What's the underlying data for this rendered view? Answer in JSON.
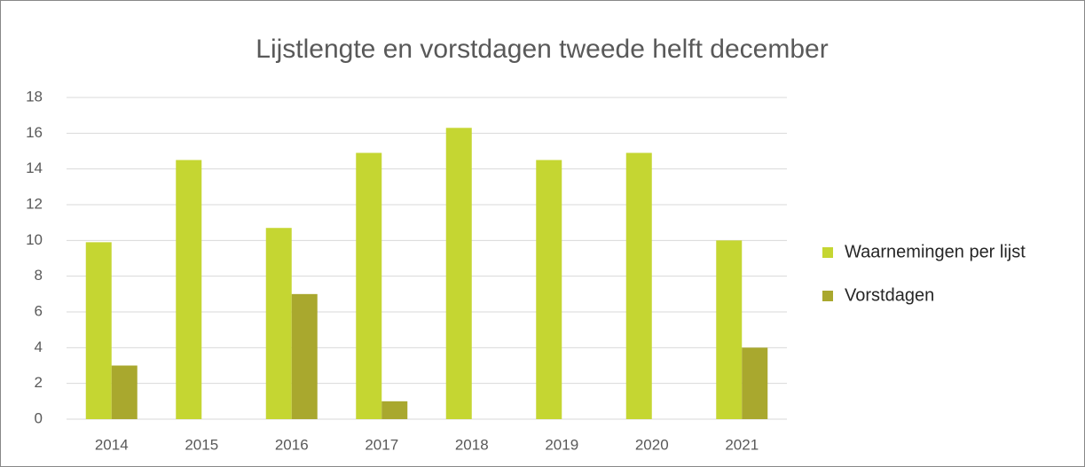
{
  "chart_data": {
    "type": "bar",
    "title": "Lijstlengte en vorstdagen tweede helft december",
    "categories": [
      "2014",
      "2015",
      "2016",
      "2017",
      "2018",
      "2019",
      "2020",
      "2021"
    ],
    "series": [
      {
        "name": "Waarnemingen per lijst",
        "color": "#c5d632",
        "values": [
          9.9,
          14.5,
          10.7,
          14.9,
          16.3,
          14.5,
          14.9,
          10.0
        ]
      },
      {
        "name": "Vorstdagen",
        "color": "#a9a82e",
        "values": [
          3,
          0,
          7,
          1,
          0,
          0,
          0,
          4
        ]
      }
    ],
    "ylim": [
      0,
      18
    ],
    "yticks": [
      0,
      2,
      4,
      6,
      8,
      10,
      12,
      14,
      16,
      18
    ],
    "grid": true,
    "legend": "right"
  }
}
